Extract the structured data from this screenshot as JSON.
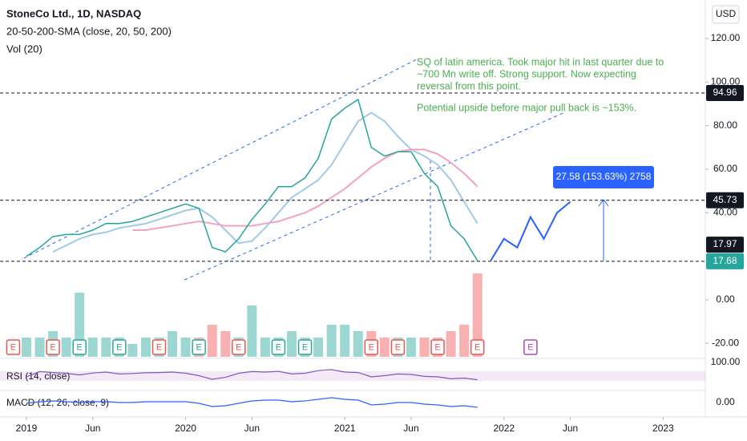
{
  "header": {
    "title": "StoneCo Ltd., 1D, NASDAQ",
    "indicator": "20-50-200-SMA (close, 20, 50, 200)",
    "volume": "Vol (20)"
  },
  "currency": "USD",
  "chart_data": {
    "type": "line",
    "x": [
      "2019-01",
      "2019-02",
      "2019-03",
      "2019-04",
      "2019-05",
      "2019-06",
      "2019-07",
      "2019-08",
      "2019-09",
      "2019-10",
      "2019-11",
      "2019-12",
      "2020-01",
      "2020-02",
      "2020-03",
      "2020-04",
      "2020-05",
      "2020-06",
      "2020-07",
      "2020-08",
      "2020-09",
      "2020-10",
      "2020-11",
      "2020-12",
      "2021-01",
      "2021-02",
      "2021-03",
      "2021-04",
      "2021-05",
      "2021-06",
      "2021-07",
      "2021-08",
      "2021-09",
      "2021-10",
      "2021-11"
    ],
    "series": [
      {
        "color": "#26a69a",
        "values": [
          20,
          24,
          29,
          30,
          30,
          32,
          35,
          35,
          36,
          38,
          40,
          42,
          44,
          42,
          24,
          22,
          28,
          37,
          44,
          52,
          52,
          56,
          65,
          83,
          88,
          92,
          70,
          66,
          68,
          68,
          58,
          52,
          34,
          28,
          18
        ]
      },
      {
        "color": "#9fcbe8",
        "values": [
          null,
          null,
          22,
          25,
          28,
          30,
          31,
          33,
          34,
          35,
          37,
          39,
          41,
          42,
          38,
          32,
          26,
          27,
          33,
          40,
          47,
          51,
          55,
          62,
          72,
          82,
          86,
          82,
          75,
          69,
          66,
          62,
          55,
          45,
          35
        ]
      },
      {
        "color": "#f4a3be",
        "values": [
          null,
          null,
          null,
          null,
          null,
          null,
          null,
          null,
          32,
          32,
          33,
          34,
          35,
          36,
          35,
          34,
          34,
          34,
          35,
          36,
          38,
          40,
          43,
          47,
          51,
          56,
          61,
          65,
          68,
          69,
          69,
          67,
          63,
          58,
          52
        ]
      }
    ],
    "projection": {
      "color": "#2962ff",
      "x": [
        "2021-12",
        "2022-01",
        "2022-02",
        "2022-03",
        "2022-04",
        "2022-05",
        "2022-06"
      ],
      "values": [
        18,
        28,
        24,
        38,
        28,
        40,
        45
      ]
    },
    "ylim": [
      -26.2,
      137.7
    ],
    "yticks": [
      {
        "value": 120,
        "label": "120.00"
      },
      {
        "value": 100,
        "label": "100.00"
      },
      {
        "value": 80,
        "label": "80.00"
      },
      {
        "value": 60,
        "label": "60.00"
      },
      {
        "value": 40,
        "label": "40.00"
      },
      {
        "value": 0,
        "label": "0.00"
      },
      {
        "value": -20,
        "label": "-20.00"
      }
    ],
    "xticks": [
      {
        "value": "2019-01",
        "label": "2019"
      },
      {
        "value": "2019-06",
        "label": "Jun"
      },
      {
        "value": "2020-01",
        "label": "2020"
      },
      {
        "value": "2020-06",
        "label": "Jun"
      },
      {
        "value": "2021-01",
        "label": "2021"
      },
      {
        "value": "2021-06",
        "label": "Jun"
      },
      {
        "value": "2022-01",
        "label": "2022"
      },
      {
        "value": "2022-06",
        "label": "Jun"
      },
      {
        "value": "2023-01",
        "label": "2023"
      }
    ],
    "levels": [
      {
        "value": 94.96,
        "color": "#131722"
      },
      {
        "value": 45.73,
        "color": "#131722"
      },
      {
        "value": 17.68,
        "color": "#26a69a"
      }
    ],
    "last_price": 17.97,
    "annotations": [
      "SQ of latin america. Took major hit in last quarter due to",
      "~700 Mn write off.  Strong support. Now expecting",
      "reversal from this point.",
      "Potential upside before major pull back is ~153%."
    ],
    "measure": {
      "label": "27.58 (153.63%) 2758"
    },
    "events": [
      {
        "x": "2018-12",
        "label": "E",
        "color": "#ef5350"
      },
      {
        "x": "2019-03",
        "label": "E",
        "color": "#ef5350"
      },
      {
        "x": "2019-05",
        "label": "E",
        "color": "#26a69a"
      },
      {
        "x": "2019-08",
        "label": "E",
        "color": "#26a69a"
      },
      {
        "x": "2019-11",
        "label": "E",
        "color": "#ef5350"
      },
      {
        "x": "2020-02",
        "label": "E",
        "color": "#26a69a"
      },
      {
        "x": "2020-05",
        "label": "E",
        "color": "#ef5350"
      },
      {
        "x": "2020-08",
        "label": "E",
        "color": "#26a69a"
      },
      {
        "x": "2020-10",
        "label": "E",
        "color": "#26a69a"
      },
      {
        "x": "2021-03",
        "label": "E",
        "color": "#ef5350"
      },
      {
        "x": "2021-05",
        "label": "E",
        "color": "#ef5350"
      },
      {
        "x": "2021-08",
        "label": "E",
        "color": "#ef5350"
      },
      {
        "x": "2021-11",
        "label": "E",
        "color": "#ef5350"
      },
      {
        "x": "2022-03",
        "label": "E",
        "color": "#ab47bc"
      }
    ],
    "volume": {
      "values": [
        3,
        3,
        4,
        3,
        10,
        3,
        3,
        3,
        2,
        3,
        3,
        4,
        3,
        3,
        5,
        4,
        3,
        8,
        3,
        3,
        4,
        3,
        3,
        5,
        5,
        4,
        4,
        3,
        3,
        3,
        3,
        3,
        4,
        5,
        13
      ]
    },
    "rsi": {
      "label": "RSI (14, close)",
      "ylim": [
        0,
        100
      ],
      "yticks": [
        {
          "value": 100,
          "label": "100.00"
        }
      ],
      "values": [
        40,
        62,
        58,
        55,
        48,
        56,
        60,
        52,
        54,
        57,
        58,
        60,
        55,
        45,
        30,
        38,
        55,
        62,
        60,
        63,
        52,
        55,
        66,
        70,
        60,
        58,
        40,
        45,
        52,
        50,
        42,
        40,
        32,
        35,
        28
      ]
    },
    "macd": {
      "label": "MACD (12, 26, close, 9)",
      "ylim": [
        -10,
        10
      ],
      "yticks": [
        {
          "value": 0,
          "label": "0.00"
        }
      ],
      "values": [
        -1,
        1,
        2,
        1,
        0,
        1,
        1,
        0,
        0,
        1,
        1,
        1,
        1,
        -1,
        -5,
        -4,
        -1,
        2,
        3,
        3,
        1,
        2,
        4,
        6,
        4,
        3,
        -3,
        -2,
        0,
        0,
        -2,
        -3,
        -5,
        -4,
        -6
      ]
    }
  }
}
